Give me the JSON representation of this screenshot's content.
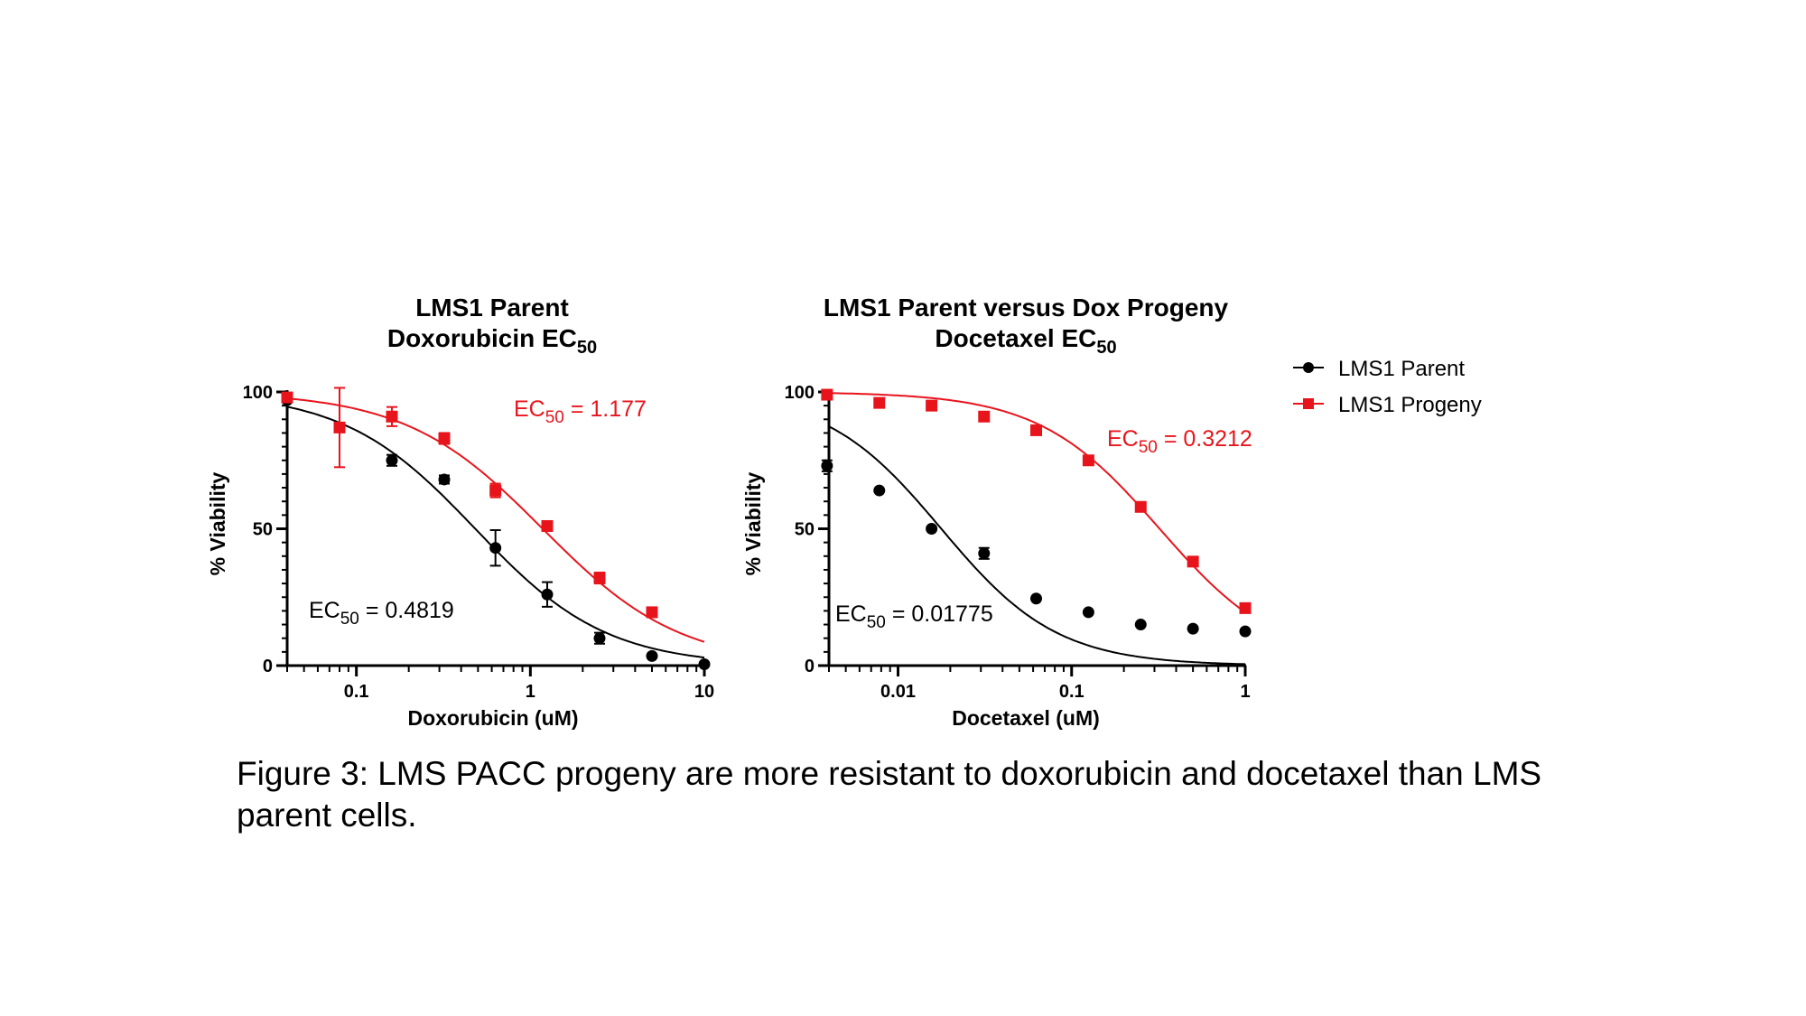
{
  "colors": {
    "parent": "#000000",
    "progeny": "#e8141c"
  },
  "legend": {
    "items": [
      {
        "label": "LMS1 Parent",
        "color": "#000000",
        "marker": "circle"
      },
      {
        "label": "LMS1 Progeny",
        "color": "#e8141c",
        "marker": "square"
      }
    ]
  },
  "caption": "Figure 3: LMS PACC progeny are more resistant to doxorubicin and docetaxel than LMS parent cells.",
  "chart_data": [
    {
      "type": "scatter",
      "title_line1": "LMS1 Parent",
      "title_line2": "Doxorubicin EC",
      "title_sub": "50",
      "xlabel": "Doxorubicin (uM)",
      "ylabel": "% Viability",
      "xscale": "log",
      "xlim": [
        0.04,
        10
      ],
      "ylim": [
        0,
        100
      ],
      "xticks": [
        {
          "v": 0.1,
          "label": "0.1"
        },
        {
          "v": 1,
          "label": "1"
        },
        {
          "v": 10,
          "label": "10"
        }
      ],
      "yticks": [
        {
          "v": 0,
          "label": "0"
        },
        {
          "v": 50,
          "label": "50"
        },
        {
          "v": 100,
          "label": "100"
        }
      ],
      "series": [
        {
          "name": "LMS1 Parent",
          "color": "#000000",
          "marker": "circle",
          "x": [
            0.04,
            0.16,
            0.32,
            0.63,
            1.25,
            2.5,
            5,
            10
          ],
          "y": [
            97,
            75,
            68,
            43,
            26,
            10,
            3.5,
            0.5
          ],
          "err": [
            0,
            2,
            1.5,
            6.5,
            4.5,
            2,
            0,
            0
          ],
          "ec50": 0.4819,
          "hill": 1.15,
          "top": 100,
          "annotation": {
            "prefix": "EC",
            "sub": "50",
            "suffix": " = 0.4819"
          }
        },
        {
          "name": "LMS1 Progeny",
          "color": "#e8141c",
          "marker": "square",
          "x": [
            0.04,
            0.08,
            0.16,
            0.32,
            0.63,
            1.25,
            2.5,
            5
          ],
          "y": [
            98,
            87,
            91,
            83,
            64,
            51,
            32,
            19.5
          ],
          "err": [
            1,
            14.5,
            3.5,
            2,
            2.5,
            0,
            2,
            0
          ],
          "ec50": 1.177,
          "hill": 1.1,
          "top": 100,
          "annotation": {
            "prefix": "EC",
            "sub": "50",
            "suffix": " = 1.177"
          }
        }
      ]
    },
    {
      "type": "scatter",
      "title_line1": "LMS1 Parent versus Dox Progeny",
      "title_line2": "Docetaxel EC",
      "title_sub": "50",
      "xlabel": "Docetaxel (uM)",
      "ylabel": "% Viability",
      "xscale": "log",
      "xlim": [
        0.004,
        1
      ],
      "ylim": [
        0,
        100
      ],
      "xticks": [
        {
          "v": 0.01,
          "label": "0.01"
        },
        {
          "v": 0.1,
          "label": "0.1"
        },
        {
          "v": 1,
          "label": "1"
        }
      ],
      "yticks": [
        {
          "v": 0,
          "label": "0"
        },
        {
          "v": 50,
          "label": "50"
        },
        {
          "v": 100,
          "label": "100"
        }
      ],
      "series": [
        {
          "name": "LMS1 Parent",
          "color": "#000000",
          "marker": "circle",
          "x": [
            0.0039,
            0.0078,
            0.0156,
            0.0313,
            0.0625,
            0.125,
            0.25,
            0.5,
            1
          ],
          "y": [
            73,
            64,
            50,
            41,
            24.5,
            19.5,
            15,
            13.5,
            12.5
          ],
          "err": [
            2,
            0,
            0,
            2,
            0,
            0,
            0,
            0,
            0
          ],
          "ec50": 0.01775,
          "hill": 1.3,
          "top": 100,
          "annotation": {
            "prefix": "EC",
            "sub": "50",
            "suffix": " = 0.01775"
          }
        },
        {
          "name": "LMS1 Progeny",
          "color": "#e8141c",
          "marker": "square",
          "x": [
            0.0039,
            0.0078,
            0.0156,
            0.0313,
            0.0625,
            0.125,
            0.25,
            0.5,
            1
          ],
          "y": [
            99,
            96,
            95,
            91,
            86,
            75,
            58,
            38,
            21
          ],
          "err": [
            0,
            0,
            0,
            0,
            0,
            0,
            0,
            0,
            0
          ],
          "ec50": 0.3212,
          "hill": 1.25,
          "top": 100,
          "annotation": {
            "prefix": "EC",
            "sub": "50",
            "suffix": " = 0.3212"
          }
        }
      ]
    }
  ]
}
